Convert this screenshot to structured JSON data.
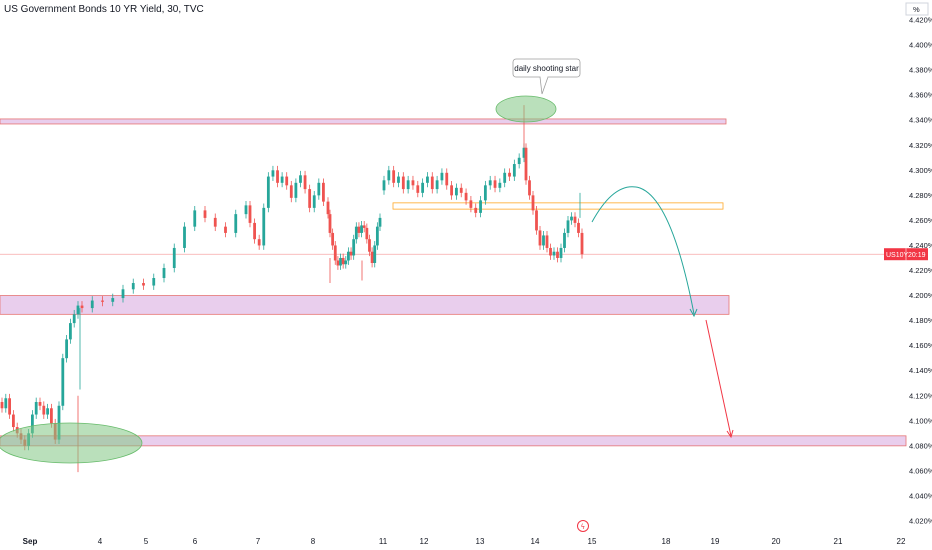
{
  "header": {
    "title": "US Government Bonds 10 YR Yield, 30, TVC"
  },
  "scale_label": "%",
  "price_tag": {
    "symbol": "US10Y",
    "countdown": "20:19",
    "value": 4.233
  },
  "annotation": {
    "text": "daily shooting star"
  },
  "colors": {
    "up": "#26a69a",
    "down": "#ef5350",
    "zone": "#e1bee7",
    "zone_border": "#e57373",
    "tag": "#f23645",
    "ellipse": "#81c784",
    "arrow_green": "#26a69a",
    "arrow_red": "#f23645",
    "orange": "#ffa726"
  },
  "chart_data": {
    "type": "candlestick",
    "title": "US Government Bonds 10 YR Yield, 30, TVC",
    "ylabel": "%",
    "ylim": [
      4.02,
      4.42
    ],
    "y_ticks": [
      "4.420%",
      "4.400%",
      "4.380%",
      "4.360%",
      "4.340%",
      "4.320%",
      "4.300%",
      "4.280%",
      "4.260%",
      "4.240%",
      "4.220%",
      "4.200%",
      "4.180%",
      "4.160%",
      "4.140%",
      "4.120%",
      "4.100%",
      "4.080%",
      "4.060%",
      "4.040%",
      "4.020%"
    ],
    "x_ticks": [
      "Sep",
      "4",
      "5",
      "6",
      "7",
      "8",
      "11",
      "12",
      "13",
      "14",
      "15",
      "18",
      "19",
      "20",
      "21",
      "22"
    ],
    "series": [
      {
        "name": "US10Y",
        "points": [
          [
            4.115,
            4.11
          ],
          [
            4.11,
            4.118
          ],
          [
            4.118,
            4.105
          ],
          [
            4.105,
            4.095
          ],
          [
            4.095,
            4.09
          ],
          [
            4.09,
            4.085
          ],
          [
            4.085,
            4.08
          ],
          [
            4.08,
            4.09
          ],
          [
            4.09,
            4.105
          ],
          [
            4.105,
            4.115
          ],
          [
            4.115,
            4.112
          ],
          [
            4.112,
            4.105
          ],
          [
            4.105,
            4.11
          ],
          [
            4.11,
            4.098
          ],
          [
            4.098,
            4.085
          ],
          [
            4.085,
            4.112
          ],
          [
            4.112,
            4.15
          ],
          [
            4.15,
            4.165
          ],
          [
            4.165,
            4.178
          ],
          [
            4.178,
            4.185
          ],
          [
            4.185,
            4.192
          ],
          [
            4.192,
            4.19
          ],
          [
            4.19,
            4.196
          ],
          [
            4.196,
            4.195
          ],
          [
            4.195,
            4.198
          ],
          [
            4.198,
            4.205
          ],
          [
            4.205,
            4.21
          ],
          [
            4.21,
            4.208
          ],
          [
            4.208,
            4.214
          ],
          [
            4.214,
            4.222
          ],
          [
            4.222,
            4.238
          ],
          [
            4.238,
            4.255
          ],
          [
            4.255,
            4.268
          ],
          [
            4.268,
            4.262
          ],
          [
            4.262,
            4.255
          ],
          [
            4.255,
            4.25
          ],
          [
            4.25,
            4.265
          ],
          [
            4.265,
            4.272
          ],
          [
            4.272,
            4.258
          ],
          [
            4.258,
            4.245
          ],
          [
            4.245,
            4.24
          ],
          [
            4.24,
            4.27
          ],
          [
            4.27,
            4.295
          ],
          [
            4.295,
            4.3
          ],
          [
            4.3,
            4.29
          ],
          [
            4.29,
            4.295
          ],
          [
            4.295,
            4.288
          ],
          [
            4.288,
            4.278
          ],
          [
            4.278,
            4.29
          ],
          [
            4.29,
            4.296
          ],
          [
            4.296,
            4.285
          ],
          [
            4.285,
            4.27
          ],
          [
            4.27,
            4.28
          ],
          [
            4.28,
            4.29
          ],
          [
            4.29,
            4.275
          ],
          [
            4.275,
            4.265
          ],
          [
            4.265,
            4.25
          ],
          [
            4.25,
            4.24
          ],
          [
            4.24,
            4.228
          ],
          [
            4.228,
            4.224
          ],
          [
            4.224,
            4.23
          ],
          [
            4.23,
            4.225
          ],
          [
            4.225,
            4.228
          ],
          [
            4.228,
            4.235
          ],
          [
            4.235,
            4.232
          ],
          [
            4.232,
            4.245
          ],
          [
            4.245,
            4.255
          ],
          [
            4.255,
            4.25
          ],
          [
            4.25,
            4.256
          ],
          [
            4.256,
            4.254
          ],
          [
            4.254,
            4.245
          ],
          [
            4.245,
            4.235
          ],
          [
            4.235,
            4.226
          ],
          [
            4.226,
            4.24
          ],
          [
            4.24,
            4.255
          ],
          [
            4.255,
            4.262
          ],
          [
            4.284,
            4.292
          ],
          [
            4.292,
            4.3
          ],
          [
            4.3,
            4.29
          ],
          [
            4.29,
            4.295
          ],
          [
            4.295,
            4.285
          ],
          [
            4.285,
            4.292
          ],
          [
            4.292,
            4.288
          ],
          [
            4.288,
            4.282
          ],
          [
            4.282,
            4.29
          ],
          [
            4.29,
            4.295
          ],
          [
            4.295,
            4.285
          ],
          [
            4.285,
            4.292
          ],
          [
            4.292,
            4.298
          ],
          [
            4.298,
            4.288
          ],
          [
            4.288,
            4.28
          ],
          [
            4.28,
            4.286
          ],
          [
            4.286,
            4.282
          ],
          [
            4.282,
            4.276
          ],
          [
            4.276,
            4.27
          ],
          [
            4.27,
            4.266
          ],
          [
            4.266,
            4.276
          ],
          [
            4.276,
            4.288
          ],
          [
            4.288,
            4.292
          ],
          [
            4.292,
            4.286
          ],
          [
            4.286,
            4.29
          ],
          [
            4.29,
            4.298
          ],
          [
            4.298,
            4.295
          ],
          [
            4.295,
            4.305
          ],
          [
            4.305,
            4.31
          ],
          [
            4.31,
            4.318
          ],
          [
            4.318,
            4.292
          ],
          [
            4.292,
            4.28
          ],
          [
            4.28,
            4.268
          ],
          [
            4.268,
            4.252
          ],
          [
            4.252,
            4.24
          ],
          [
            4.24,
            4.248
          ],
          [
            4.248,
            4.238
          ],
          [
            4.238,
            4.232
          ],
          [
            4.232,
            4.235
          ],
          [
            4.235,
            4.23
          ],
          [
            4.23,
            4.238
          ],
          [
            4.238,
            4.25
          ],
          [
            4.25,
            4.26
          ],
          [
            4.26,
            4.263
          ],
          [
            4.263,
            4.258
          ],
          [
            4.258,
            4.25
          ],
          [
            4.25,
            4.233
          ]
        ]
      }
    ],
    "zones": [
      {
        "name": "upper-resistance-zone",
        "low": 4.337,
        "high": 4.341
      },
      {
        "name": "mid-support-zone",
        "low": 4.185,
        "high": 4.2
      },
      {
        "name": "lower-support-zone",
        "low": 4.08,
        "high": 4.088
      },
      {
        "name": "orange-box",
        "low": 4.269,
        "high": 4.274
      }
    ],
    "price_line": 4.233
  }
}
